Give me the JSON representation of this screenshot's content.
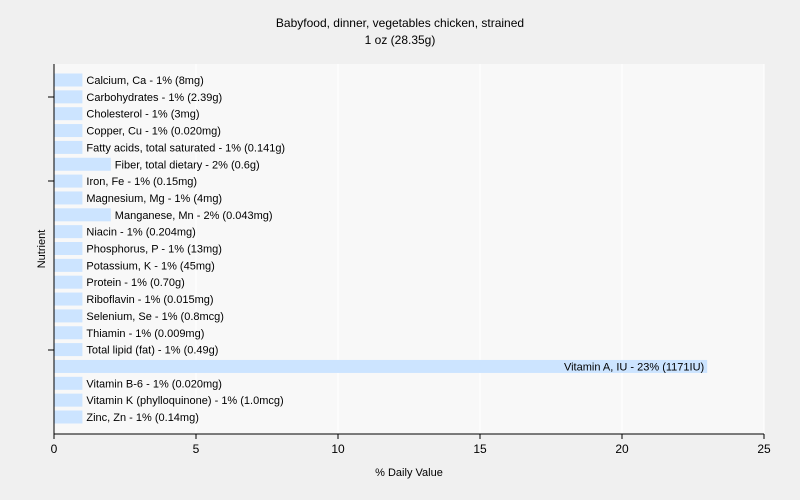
{
  "chart_data": {
    "type": "bar",
    "orientation": "horizontal",
    "title": "Babyfood, dinner, vegetables chicken, strained",
    "subtitle": "1 oz (28.35g)",
    "xlabel": "% Daily Value",
    "ylabel": "Nutrient",
    "xlim": [
      0,
      25
    ],
    "xticks": [
      "0",
      "5",
      "10",
      "15",
      "20",
      "25"
    ],
    "grid": true,
    "colors": {
      "bar": "#cce4ff",
      "plot_bg": "#f8f8f8",
      "grid": "#ffffff",
      "page_bg": "#f0f0f0"
    },
    "categories": [
      "Calcium, Ca",
      "Carbohydrates",
      "Cholesterol",
      "Copper, Cu",
      "Fatty acids, total saturated",
      "Fiber, total dietary",
      "Iron, Fe",
      "Magnesium, Mg",
      "Manganese, Mn",
      "Niacin",
      "Phosphorus, P",
      "Potassium, K",
      "Protein",
      "Riboflavin",
      "Selenium, Se",
      "Thiamin",
      "Total lipid (fat)",
      "Vitamin A, IU",
      "Vitamin B-6",
      "Vitamin K (phylloquinone)",
      "Zinc, Zn"
    ],
    "values": [
      1,
      1,
      1,
      1,
      1,
      2,
      1,
      1,
      2,
      1,
      1,
      1,
      1,
      1,
      1,
      1,
      1,
      23,
      1,
      1,
      1
    ],
    "labels": [
      "Calcium, Ca - 1% (8mg)",
      "Carbohydrates - 1% (2.39g)",
      "Cholesterol - 1% (3mg)",
      "Copper, Cu - 1% (0.020mg)",
      "Fatty acids, total saturated - 1% (0.141g)",
      "Fiber, total dietary - 2% (0.6g)",
      "Iron, Fe - 1% (0.15mg)",
      "Magnesium, Mg - 1% (4mg)",
      "Manganese, Mn - 2% (0.043mg)",
      "Niacin - 1% (0.204mg)",
      "Phosphorus, P - 1% (13mg)",
      "Potassium, K - 1% (45mg)",
      "Protein - 1% (0.70g)",
      "Riboflavin - 1% (0.015mg)",
      "Selenium, Se - 1% (0.8mcg)",
      "Thiamin - 1% (0.009mg)",
      "Total lipid (fat) - 1% (0.49g)",
      "Vitamin A, IU - 23% (1171IU)",
      "Vitamin B-6 - 1% (0.020mg)",
      "Vitamin K (phylloquinone) - 1% (1.0mcg)",
      "Zinc, Zn - 1% (0.14mg)"
    ]
  }
}
